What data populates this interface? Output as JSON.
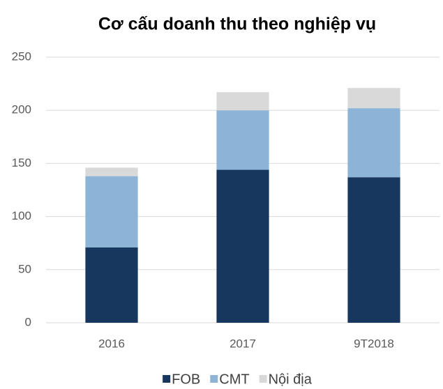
{
  "chart_data": {
    "type": "stacked_bar",
    "title": "Cơ cấu doanh thu theo nghiệp vụ",
    "categories": [
      "2016",
      "2017",
      "9T2018"
    ],
    "series": [
      {
        "name": "FOB",
        "color": "#17375e",
        "values": [
          71,
          144,
          137
        ]
      },
      {
        "name": "CMT",
        "color": "#8db4d6",
        "values": [
          67,
          56,
          65
        ]
      },
      {
        "name": "Nội địa",
        "color": "#d9d9d9",
        "values": [
          8,
          17,
          19
        ]
      }
    ],
    "ylim": [
      0,
      250
    ],
    "yticks": [
      0,
      50,
      100,
      150,
      200,
      250
    ],
    "grid": true,
    "legend": "bottom"
  }
}
